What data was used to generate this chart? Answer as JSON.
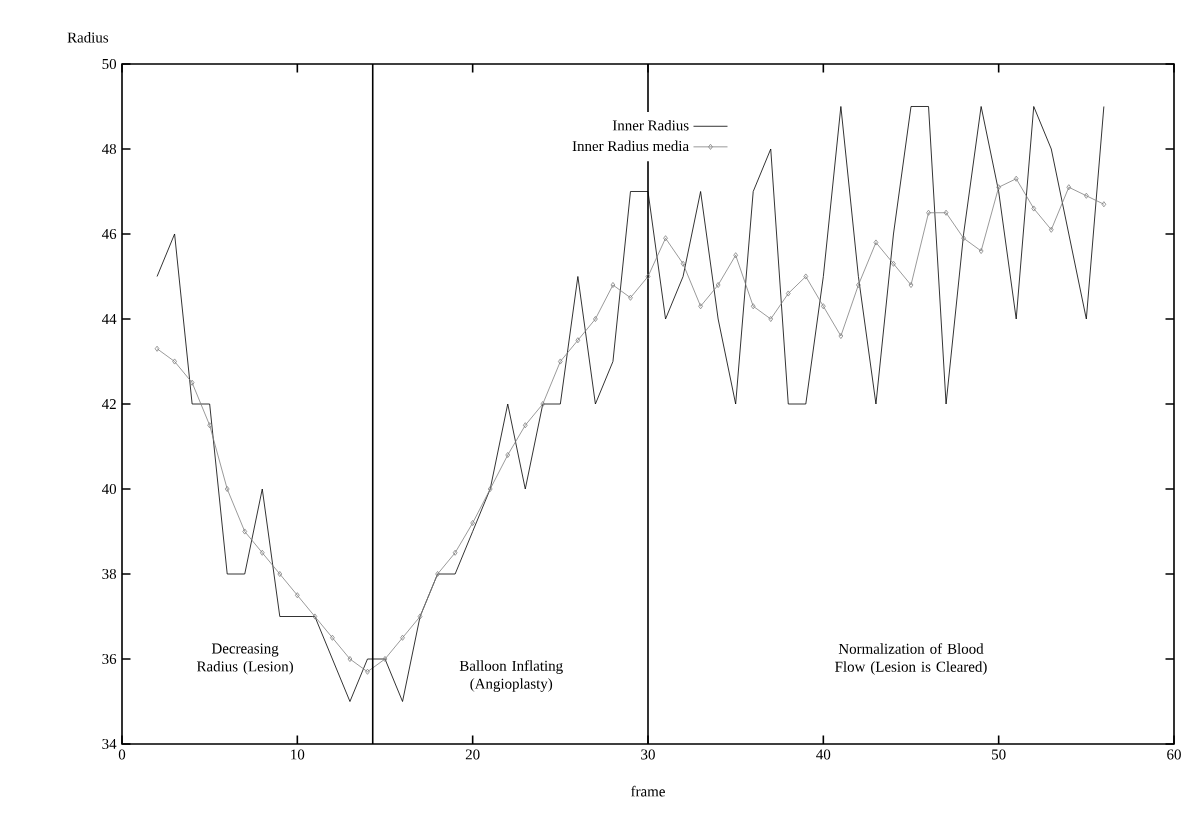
{
  "chart_data": {
    "type": "line",
    "xlabel": "frame",
    "ylabel": "Radius",
    "x": [
      2,
      3,
      4,
      5,
      6,
      7,
      8,
      9,
      10,
      11,
      12,
      13,
      14,
      15,
      16,
      17,
      18,
      19,
      20,
      21,
      22,
      23,
      24,
      25,
      26,
      27,
      28,
      29,
      30,
      31,
      32,
      33,
      34,
      35,
      36,
      37,
      38,
      39,
      40,
      41,
      42,
      43,
      44,
      45,
      46,
      47,
      48,
      49,
      50,
      51,
      52,
      53,
      54,
      55,
      56
    ],
    "series": [
      {
        "name": "Inner Radius",
        "color": "#000000",
        "marker": "none",
        "values": [
          45,
          46,
          42,
          42,
          38,
          38,
          40,
          37,
          37,
          37,
          36,
          35,
          36,
          36,
          35,
          37,
          38,
          38,
          39,
          40,
          42,
          40,
          42,
          42,
          45,
          42,
          43,
          47,
          47,
          44,
          45,
          47,
          44,
          42,
          47,
          48,
          42,
          42,
          45,
          49,
          45,
          42,
          46,
          49,
          49,
          42,
          46,
          49,
          47,
          44,
          49,
          48,
          46,
          44,
          49
        ]
      },
      {
        "name": "Inner Radius media",
        "color": "#808080",
        "marker": "diamond",
        "values": [
          43.3,
          43,
          42.5,
          41.5,
          40,
          39,
          38.5,
          38,
          37.5,
          37,
          36.5,
          36,
          35.7,
          36,
          36.5,
          37,
          38,
          38.5,
          39.2,
          40,
          40.8,
          41.5,
          42,
          43,
          43.5,
          44,
          44.8,
          44.5,
          45,
          45.9,
          45.3,
          44.3,
          44.8,
          45.5,
          44.3,
          44,
          44.6,
          45,
          44.3,
          43.6,
          44.8,
          45.8,
          45.3,
          44.8,
          46.5,
          46.5,
          45.9,
          45.6,
          47.1,
          47.3,
          46.6,
          46.1,
          47.1,
          46.9,
          46.7
        ]
      }
    ],
    "xlim": [
      0,
      60
    ],
    "xticks": [
      0,
      10,
      20,
      30,
      40,
      50,
      60
    ],
    "ylim": [
      34,
      50
    ],
    "yticks": [
      34,
      36,
      38,
      40,
      42,
      44,
      46,
      48,
      50
    ],
    "legend": "top",
    "ref_lines": [
      {
        "axis": "x",
        "value": 14.3,
        "color": "#000000"
      },
      {
        "axis": "x",
        "value": 30,
        "color": "#000000"
      }
    ],
    "annotations": [
      "Decreasing Radius (Lesion)",
      "Balloon Inflating (Angioplasty)",
      "Normalization of Blood Flow (Lesion is Cleared)"
    ]
  }
}
